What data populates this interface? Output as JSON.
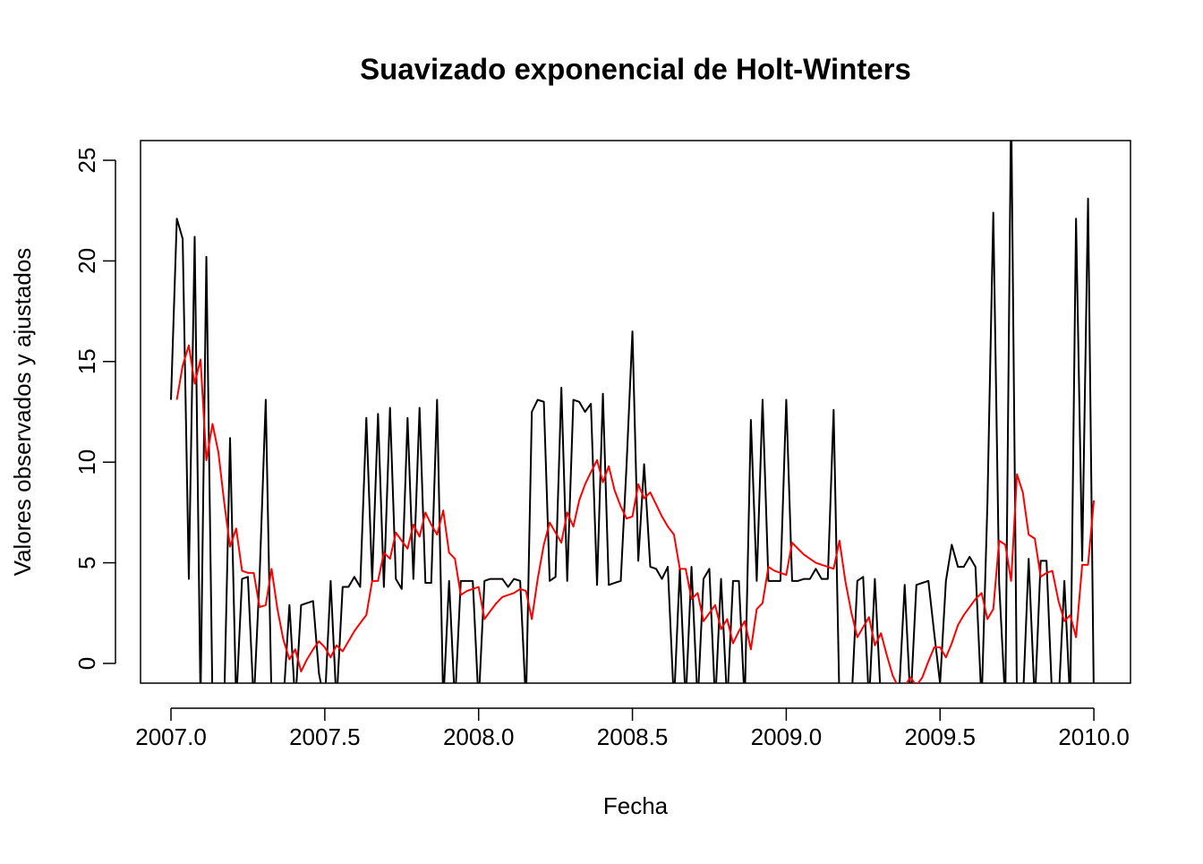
{
  "chart_data": {
    "type": "line",
    "title": "Suavizado exponencial de Holt-Winters",
    "xlabel": "Fecha",
    "ylabel": "Valores observados y ajustados",
    "x": [
      2007.0,
      2007.019,
      2007.038,
      2007.058,
      2007.077,
      2007.096,
      2007.115,
      2007.135,
      2007.154,
      2007.173,
      2007.192,
      2007.212,
      2007.231,
      2007.25,
      2007.269,
      2007.288,
      2007.308,
      2007.327,
      2007.346,
      2007.365,
      2007.385,
      2007.404,
      2007.423,
      2007.442,
      2007.462,
      2007.481,
      2007.5,
      2007.519,
      2007.538,
      2007.558,
      2007.577,
      2007.596,
      2007.615,
      2007.635,
      2007.654,
      2007.673,
      2007.692,
      2007.712,
      2007.731,
      2007.75,
      2007.769,
      2007.788,
      2007.808,
      2007.827,
      2007.846,
      2007.865,
      2007.885,
      2007.904,
      2007.923,
      2007.942,
      2007.962,
      2007.981,
      2008.0,
      2008.019,
      2008.038,
      2008.058,
      2008.077,
      2008.096,
      2008.115,
      2008.135,
      2008.154,
      2008.173,
      2008.192,
      2008.212,
      2008.231,
      2008.25,
      2008.269,
      2008.288,
      2008.308,
      2008.327,
      2008.346,
      2008.365,
      2008.385,
      2008.404,
      2008.423,
      2008.442,
      2008.462,
      2008.481,
      2008.5,
      2008.519,
      2008.538,
      2008.558,
      2008.577,
      2008.596,
      2008.615,
      2008.635,
      2008.654,
      2008.673,
      2008.692,
      2008.712,
      2008.731,
      2008.75,
      2008.769,
      2008.788,
      2008.808,
      2008.827,
      2008.846,
      2008.865,
      2008.885,
      2008.904,
      2008.923,
      2008.942,
      2008.962,
      2008.981,
      2009.0,
      2009.019,
      2009.038,
      2009.058,
      2009.077,
      2009.096,
      2009.115,
      2009.135,
      2009.154,
      2009.173,
      2009.192,
      2009.212,
      2009.231,
      2009.25,
      2009.269,
      2009.288,
      2009.308,
      2009.327,
      2009.346,
      2009.365,
      2009.385,
      2009.404,
      2009.423,
      2009.442,
      2009.462,
      2009.481,
      2009.5,
      2009.519,
      2009.538,
      2009.558,
      2009.577,
      2009.596,
      2009.615,
      2009.635,
      2009.654,
      2009.673,
      2009.692,
      2009.712,
      2009.731,
      2009.75,
      2009.769,
      2009.788,
      2009.808,
      2009.827,
      2009.846,
      2009.865,
      2009.885,
      2009.904,
      2009.923,
      2009.942,
      2009.962,
      2009.981,
      2010.0
    ],
    "series": [
      {
        "color": "#000000",
        "values": [
          13.1,
          22.1,
          21.1,
          4.2,
          21.2,
          -2,
          20.2,
          -2,
          -2,
          -2,
          11.2,
          -2,
          4.2,
          4.3,
          -2,
          4.3,
          13.1,
          -2,
          -2,
          -2,
          2.9,
          -2,
          2.9,
          3.0,
          3.1,
          -0.5,
          -2,
          4.1,
          -2,
          3.8,
          3.8,
          4.3,
          3.8,
          12.2,
          4.1,
          12.4,
          3.8,
          12.7,
          4.2,
          3.7,
          12.2,
          4.2,
          12.7,
          4.0,
          4.0,
          13.1,
          -2,
          4.1,
          -2,
          4.1,
          4.1,
          4.1,
          -2,
          4.1,
          4.2,
          4.2,
          4.2,
          3.8,
          4.2,
          4.1,
          -2,
          12.5,
          13.1,
          13.0,
          4.1,
          4.3,
          13.7,
          4.1,
          13.1,
          13.0,
          12.5,
          12.9,
          3.9,
          13.4,
          3.9,
          4.0,
          4.1,
          9.9,
          16.5,
          5.1,
          9.9,
          4.8,
          4.7,
          4.2,
          4.8,
          -2,
          4.7,
          -2,
          4.8,
          -2,
          4.2,
          4.7,
          -2,
          4.2,
          -2,
          4.1,
          4.1,
          -2,
          12.1,
          4.1,
          13.1,
          4.1,
          4.1,
          4.1,
          13.1,
          4.1,
          4.1,
          4.2,
          4.2,
          4.7,
          4.2,
          4.2,
          12.6,
          -2,
          -2,
          -2,
          4.1,
          4.3,
          -2,
          4.2,
          -2,
          -2,
          -2,
          -2,
          3.9,
          -2,
          3.9,
          4.0,
          4.1,
          1.5,
          -1,
          4.1,
          5.9,
          4.8,
          4.8,
          5.3,
          4.8,
          -2,
          8,
          22.4,
          4,
          -2,
          28,
          -2,
          -2,
          5.2,
          -2,
          5.1,
          5.1,
          -2,
          -2,
          4.1,
          -2,
          22.1,
          5.1,
          23.1,
          -2
        ]
      },
      {
        "color": "#ff0000",
        "values": [
          null,
          13.1,
          14.8,
          15.8,
          13.9,
          15.1,
          10.1,
          11.9,
          10.5,
          8.0,
          5.8,
          6.7,
          4.6,
          4.5,
          4.5,
          2.8,
          2.9,
          4.7,
          2.7,
          1.2,
          0.2,
          0.7,
          -0.4,
          0.2,
          0.7,
          1.1,
          0.8,
          0.3,
          0.9,
          0.6,
          1.1,
          1.6,
          2.0,
          2.4,
          4.1,
          4.1,
          5.5,
          5.2,
          6.5,
          6.1,
          5.7,
          6.9,
          6.3,
          7.5,
          6.9,
          6.4,
          7.6,
          5.5,
          5.2,
          3.4,
          3.6,
          3.7,
          3.8,
          2.2,
          2.6,
          3.0,
          3.3,
          3.4,
          3.5,
          3.7,
          3.6,
          2.2,
          4.2,
          5.9,
          7.0,
          6.5,
          6.0,
          7.5,
          6.8,
          8.1,
          8.9,
          9.5,
          10.1,
          9.0,
          9.8,
          8.6,
          7.8,
          7.2,
          7.3,
          8.9,
          8.2,
          8.5,
          7.9,
          7.3,
          6.8,
          6.4,
          4.7,
          4.7,
          3.2,
          3.5,
          2.1,
          2.5,
          2.9,
          1.7,
          2.2,
          1.0,
          1.6,
          2.1,
          0.7,
          2.7,
          3.0,
          4.8,
          4.6,
          4.5,
          4.4,
          6.0,
          5.7,
          5.4,
          5.2,
          5.0,
          4.9,
          4.8,
          4.7,
          6.1,
          4.1,
          2.5,
          1.3,
          1.8,
          2.3,
          0.9,
          1.5,
          0.4,
          -0.6,
          -1.2,
          -1.1,
          -0.7,
          -1.1,
          -0.7,
          0.1,
          0.8,
          0.8,
          0.3,
          1.0,
          1.9,
          2.4,
          2.8,
          3.2,
          3.5,
          2.2,
          2.7,
          6.1,
          5.9,
          4.1,
          9.4,
          8.5,
          6.4,
          6.2,
          4.3,
          4.5,
          4.6,
          3.1,
          2.1,
          2.4,
          1.3,
          4.9,
          4.9,
          8.1
        ]
      }
    ],
    "xlim": [
      2006.901,
      2010.119
    ],
    "ylim": [
      -0.98,
      25.98
    ],
    "xticks": [
      {
        "value": 2007,
        "label": "2007.0"
      },
      {
        "value": 2007.5,
        "label": "2007.5"
      },
      {
        "value": 2008,
        "label": "2008.0"
      },
      {
        "value": 2008.5,
        "label": "2008.5"
      },
      {
        "value": 2009,
        "label": "2009.0"
      },
      {
        "value": 2009.5,
        "label": "2009.5"
      },
      {
        "value": 2010,
        "label": "2010.0"
      }
    ],
    "yticks": [
      0,
      5,
      10,
      15,
      20,
      25
    ],
    "grid": false
  }
}
